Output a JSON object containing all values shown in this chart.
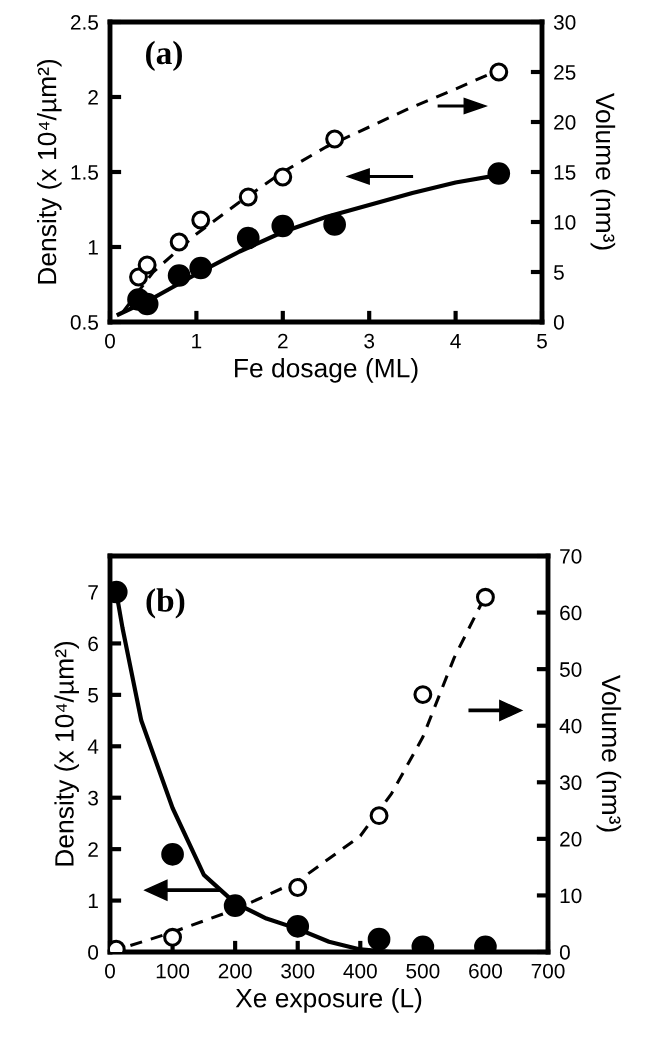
{
  "chart_data": [
    {
      "type": "scatter",
      "annotations": [
        "(a)"
      ],
      "xlabel": "Fe dosage (ML)",
      "ylabel": "Density (x 10⁴/µm²)",
      "y2label": "Volume (nm³)",
      "xlim": [
        0,
        5
      ],
      "xticks": [
        0,
        1,
        2,
        3,
        4,
        5
      ],
      "ylim": [
        0.5,
        2.5
      ],
      "yticks": [
        0.5,
        1,
        1.5,
        2,
        2.5
      ],
      "y2lim": [
        0,
        30
      ],
      "y2ticks": [
        0,
        5,
        10,
        15,
        20,
        25,
        30
      ],
      "grid": false,
      "legend": false,
      "series": [
        {
          "type": "line",
          "color": "#000000",
          "marker": "none",
          "line_style": "solid",
          "x": [
            0.1,
            0.5,
            1,
            1.5,
            2,
            2.5,
            3,
            3.5,
            4,
            4.5
          ],
          "values": [
            0.55,
            0.66,
            0.82,
            0.97,
            1.1,
            1.2,
            1.28,
            1.36,
            1.43,
            1.48
          ]
        },
        {
          "type": "line",
          "axis": "y2",
          "color": "#000000",
          "marker": "none",
          "line_style": "dashed",
          "x": [
            0.15,
            0.5,
            1,
            1.5,
            2,
            2.5,
            3,
            3.5,
            4,
            4.5
          ],
          "values": [
            1,
            5,
            8.8,
            12,
            15,
            17.5,
            19.5,
            21.5,
            23.3,
            25.2
          ]
        },
        {
          "color": "#000000",
          "marker": "circle",
          "x": [
            0.33,
            0.43,
            0.8,
            1.05,
            1.6,
            2.0,
            2.6,
            4.5
          ],
          "values": [
            0.65,
            0.62,
            0.81,
            0.86,
            1.06,
            1.14,
            1.15,
            1.49
          ]
        },
        {
          "axis": "y2",
          "color": "#000000",
          "marker": "circle",
          "x": [
            0.33,
            0.43,
            0.8,
            1.05,
            1.6,
            2.0,
            2.6,
            4.5
          ],
          "values": [
            4.5,
            5.7,
            8.0,
            10.2,
            12.5,
            14.5,
            18.3,
            25
          ]
        }
      ]
    },
    {
      "type": "scatter",
      "annotations": [
        "(b)"
      ],
      "xlabel": "Xe exposure (L)",
      "ylabel": "Density (x 10⁴/µm²)",
      "y2label": "Volume (nm³)",
      "xlim": [
        0,
        700
      ],
      "xticks": [
        0,
        100,
        200,
        300,
        400,
        500,
        600,
        700
      ],
      "ylim": [
        0,
        7.7
      ],
      "yticks": [
        0,
        1,
        2,
        3,
        4,
        5,
        6,
        7
      ],
      "y2lim": [
        0,
        70
      ],
      "y2ticks": [
        0,
        10,
        20,
        30,
        40,
        50,
        60,
        70
      ],
      "grid": false,
      "legend": false,
      "series": [
        {
          "type": "line",
          "color": "#000000",
          "marker": "none",
          "line_style": "solid",
          "x": [
            10,
            20,
            50,
            100,
            150,
            200,
            250,
            300,
            350,
            400,
            450,
            500,
            600
          ],
          "values": [
            7,
            6.3,
            4.5,
            2.8,
            1.5,
            0.95,
            0.65,
            0.45,
            0.2,
            0.05,
            0,
            0,
            0
          ]
        },
        {
          "type": "line",
          "axis": "y2",
          "color": "#000000",
          "marker": "none",
          "line_style": "dashed",
          "x": [
            0,
            100,
            200,
            300,
            400,
            450,
            500,
            550,
            600
          ],
          "values": [
            0,
            3.5,
            7.5,
            12.5,
            20.5,
            28,
            38,
            52,
            63
          ]
        },
        {
          "color": "#000000",
          "marker": "circle",
          "x": [
            10,
            100,
            200,
            300,
            430,
            500,
            600
          ],
          "values": [
            7.0,
            1.9,
            0.9,
            0.5,
            0.25,
            0.1,
            0.1
          ]
        },
        {
          "axis": "y2",
          "color": "#000000",
          "marker": "circle",
          "x": [
            10,
            100,
            300,
            430,
            500,
            600
          ],
          "values": [
            0.5,
            2.6,
            11.4,
            24.1,
            45.5,
            62.7
          ]
        }
      ]
    }
  ]
}
